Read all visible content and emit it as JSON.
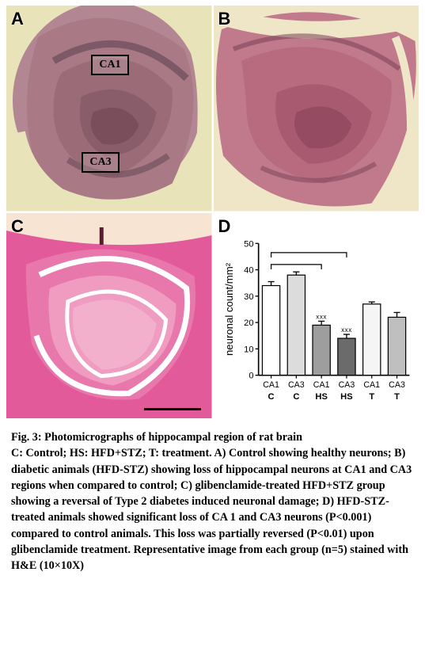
{
  "panels": {
    "A": {
      "label": "A",
      "regions": {
        "ca1": "CA1",
        "ca3": "CA3"
      },
      "tissue_color": "#a97a86",
      "bg_color": "#e9e3b9",
      "dark_band": "#6b4a58"
    },
    "B": {
      "label": "B",
      "tissue_color": "#b86b7f",
      "bg_color": "#eee6c7",
      "dark_band": "#7a3f55"
    },
    "C": {
      "label": "C",
      "tissue_color": "#e35a9b",
      "bg_color": "#f7e4d2",
      "light_ring": "#ffffff"
    }
  },
  "chart": {
    "label": "D",
    "type": "bar",
    "ylabel": "neuronal count/mm²",
    "ylabel_fontsize": 13,
    "ylim": [
      0,
      50
    ],
    "ytick_step": 10,
    "bars": [
      {
        "top": "CA1",
        "bottom": "C",
        "value": 34,
        "err": 1.5,
        "fill": "#ffffff"
      },
      {
        "top": "CA3",
        "bottom": "C",
        "value": 38,
        "err": 1.2,
        "fill": "#dcdcdc"
      },
      {
        "top": "CA1",
        "bottom": "HS",
        "value": 19,
        "err": 1.5,
        "fill": "#9e9e9e",
        "sig": "xxx"
      },
      {
        "top": "CA3",
        "bottom": "HS",
        "value": 14,
        "err": 1.5,
        "fill": "#6b6b6b",
        "sig": "xxx"
      },
      {
        "top": "CA1",
        "bottom": "T",
        "value": 27,
        "err": 0.8,
        "fill": "#f5f5f5"
      },
      {
        "top": "CA3",
        "bottom": "T",
        "value": 22,
        "err": 1.8,
        "fill": "#bfbfbf"
      }
    ],
    "axis_color": "#000000",
    "tick_fontsize": 11,
    "label_fontsize": 12,
    "bar_width": 0.7,
    "comparison_brackets": [
      {
        "from": 0,
        "to": 2,
        "level": 42
      },
      {
        "from": 0,
        "to": 3,
        "level": 46.5
      }
    ]
  },
  "caption": {
    "title": "Fig. 3: Photomicrographs of hippocampal region of rat brain",
    "body": "C: Control; HS: HFD+STZ; T: treatment. A) Control showing healthy neurons; B) diabetic animals (HFD-STZ) showing loss of hippocampal neurons at CA1 and CA3 regions when compared to control; C) glibenclamide-treated HFD+STZ group showing a reversal of Type 2 diabetes induced neuronal damage; D) HFD-STZ-treated animals showed significant loss of CA 1 and CA3 neurons (P<0.001) compared to control animals. This loss was partially reversed (P<0.01) upon glibenclamide treatment. Representative image from each group (n=5) stained with H&E (10×10X)"
  }
}
